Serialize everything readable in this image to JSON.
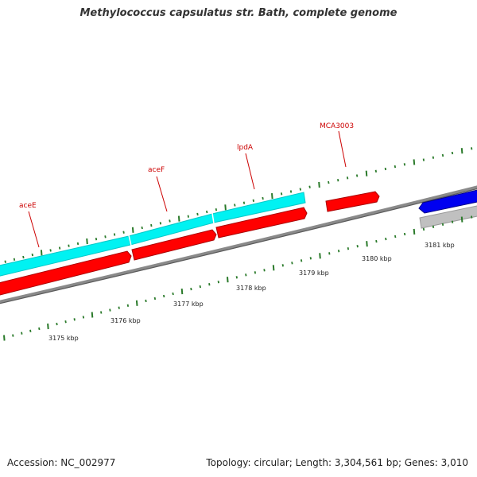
{
  "title": "Methylococcus capsulatus str. Bath, complete genome",
  "footer": {
    "accession": "Accession: NC_002977",
    "summary": "Topology: circular; Length: 3,304,561 bp; Genes: 3,010"
  },
  "colors": {
    "gene_label": "#cc0000",
    "tick": "#2a7a2a",
    "backbone": "#888888",
    "forward_cds": "#ff0000",
    "forward_feature": "#00f0f0",
    "reverse_cds": "#0000ee",
    "reverse_feature": "#bbbbbb"
  },
  "scale_labels": [
    "3175 kbp",
    "3176 kbp",
    "3177 kbp",
    "3178 kbp",
    "3179 kbp",
    "3180 kbp",
    "3181 kbp"
  ],
  "gene_labels": [
    "aceE",
    "aceF",
    "lpdA",
    "MCA3003"
  ]
}
